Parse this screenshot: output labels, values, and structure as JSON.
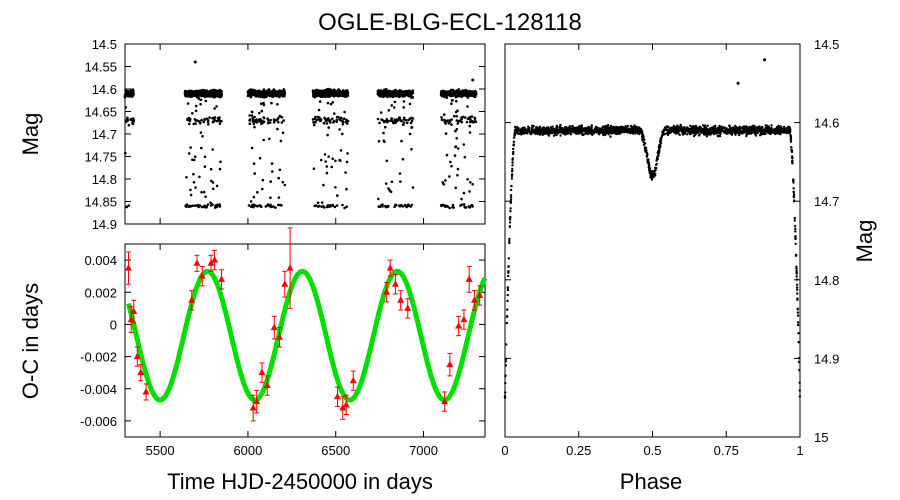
{
  "title": "OGLE-BLG-ECL-128118",
  "colors": {
    "points": "#000000",
    "oc_points": "#ff0000",
    "fit": "#00e000",
    "frame": "#000000"
  },
  "chart_data": [
    {
      "id": "lightcurve",
      "type": "scatter",
      "xlabel": "",
      "ylabel": "Mag",
      "xlim": [
        5300,
        7350
      ],
      "ylim": [
        14.9,
        14.5
      ],
      "yticks": [
        "14.5",
        "14.55",
        "14.6",
        "14.65",
        "14.7",
        "14.75",
        "14.8",
        "14.85",
        "14.9"
      ],
      "yticks_values": [
        14.5,
        14.55,
        14.6,
        14.65,
        14.7,
        14.75,
        14.8,
        14.85,
        14.9
      ],
      "seasons": [
        {
          "start": 5300,
          "end": 5350
        },
        {
          "start": 5640,
          "end": 5850
        },
        {
          "start": 6000,
          "end": 6210
        },
        {
          "start": 6370,
          "end": 6570
        },
        {
          "start": 6740,
          "end": 6940
        },
        {
          "start": 7100,
          "end": 7300
        }
      ],
      "baseline_mag": 14.61,
      "eclipse_mags": [
        14.67,
        14.86
      ],
      "outliers": [
        [
          5700,
          14.54
        ],
        [
          7280,
          14.58
        ]
      ]
    },
    {
      "id": "oc",
      "type": "scatter+line",
      "xlabel": "Time HJD-2450000 in days",
      "ylabel": "O-C in days",
      "xlim": [
        5300,
        7350
      ],
      "ylim": [
        -0.007,
        0.005
      ],
      "xticks": [
        "5500",
        "6000",
        "6500",
        "7000"
      ],
      "xticks_values": [
        5500,
        6000,
        6500,
        7000
      ],
      "yticks": [
        "0.004",
        "0.002",
        "0",
        "-0.002",
        "-0.004",
        "-0.006"
      ],
      "yticks_values": [
        0.004,
        0.002,
        0,
        -0.002,
        -0.004,
        -0.006
      ],
      "fit": {
        "amplitude": 0.004,
        "offset": -0.0007,
        "period": 540,
        "peak_time": 5770
      },
      "points": [
        {
          "x": 5320,
          "y": 0.0035,
          "err": 0.001
        },
        {
          "x": 5335,
          "y": 0.0003,
          "err": 0.0008
        },
        {
          "x": 5350,
          "y": 0.0008,
          "err": 0.0007
        },
        {
          "x": 5370,
          "y": -0.002,
          "err": 0.0006
        },
        {
          "x": 5390,
          "y": -0.003,
          "err": 0.0005
        },
        {
          "x": 5420,
          "y": -0.0042,
          "err": 0.0005
        },
        {
          "x": 5680,
          "y": 0.0015,
          "err": 0.0006
        },
        {
          "x": 5710,
          "y": 0.0038,
          "err": 0.0005
        },
        {
          "x": 5740,
          "y": 0.003,
          "err": 0.0006
        },
        {
          "x": 5790,
          "y": 0.0038,
          "err": 0.0005
        },
        {
          "x": 5810,
          "y": 0.004,
          "err": 0.0006
        },
        {
          "x": 5850,
          "y": 0.0028,
          "err": 0.0006
        },
        {
          "x": 6030,
          "y": -0.0052,
          "err": 0.0008
        },
        {
          "x": 6050,
          "y": -0.0048,
          "err": 0.0007
        },
        {
          "x": 6080,
          "y": -0.003,
          "err": 0.0006
        },
        {
          "x": 6110,
          "y": -0.0038,
          "err": 0.0006
        },
        {
          "x": 6150,
          "y": -0.0002,
          "err": 0.0007
        },
        {
          "x": 6180,
          "y": -0.0008,
          "err": 0.0006
        },
        {
          "x": 6210,
          "y": 0.0025,
          "err": 0.0008
        },
        {
          "x": 6240,
          "y": 0.0035,
          "err": 0.0025
        },
        {
          "x": 6510,
          "y": -0.0045,
          "err": 0.0006
        },
        {
          "x": 6540,
          "y": -0.0052,
          "err": 0.0007
        },
        {
          "x": 6560,
          "y": -0.005,
          "err": 0.0006
        },
        {
          "x": 6600,
          "y": -0.0035,
          "err": 0.0006
        },
        {
          "x": 6790,
          "y": 0.002,
          "err": 0.0006
        },
        {
          "x": 6810,
          "y": 0.0035,
          "err": 0.0005
        },
        {
          "x": 6840,
          "y": 0.0025,
          "err": 0.0006
        },
        {
          "x": 6870,
          "y": 0.0015,
          "err": 0.0006
        },
        {
          "x": 6910,
          "y": 0.001,
          "err": 0.0006
        },
        {
          "x": 7120,
          "y": -0.0048,
          "err": 0.0006
        },
        {
          "x": 7150,
          "y": -0.0025,
          "err": 0.0007
        },
        {
          "x": 7200,
          "y": -0.0001,
          "err": 0.0006
        },
        {
          "x": 7230,
          "y": 0.0003,
          "err": 0.0006
        },
        {
          "x": 7260,
          "y": 0.0028,
          "err": 0.0008
        },
        {
          "x": 7290,
          "y": 0.0015,
          "err": 0.0006
        },
        {
          "x": 7320,
          "y": 0.0018,
          "err": 0.0006
        }
      ]
    },
    {
      "id": "phased",
      "type": "scatter",
      "xlabel": "Phase",
      "ylabel": "Mag",
      "xlim": [
        0,
        1
      ],
      "ylim": [
        15.0,
        14.5
      ],
      "xticks": [
        "0",
        "0.25",
        "0.5",
        "0.75",
        "1"
      ],
      "xticks_values": [
        0,
        0.25,
        0.5,
        0.75,
        1
      ],
      "yticks": [
        "14.5",
        "14.6",
        "14.7",
        "14.8",
        "14.9",
        "15"
      ],
      "yticks_values": [
        14.5,
        14.6,
        14.7,
        14.8,
        14.9,
        15.0
      ],
      "baseline_mag": 14.61,
      "primary_depth_mag": 14.95,
      "secondary_center_phase": 0.5,
      "secondary_depth_mag": 14.665,
      "primary_half_width_phase": 0.035,
      "secondary_half_width_phase": 0.04,
      "outliers": [
        [
          0.79,
          14.55
        ],
        [
          0.88,
          14.52
        ]
      ]
    }
  ]
}
